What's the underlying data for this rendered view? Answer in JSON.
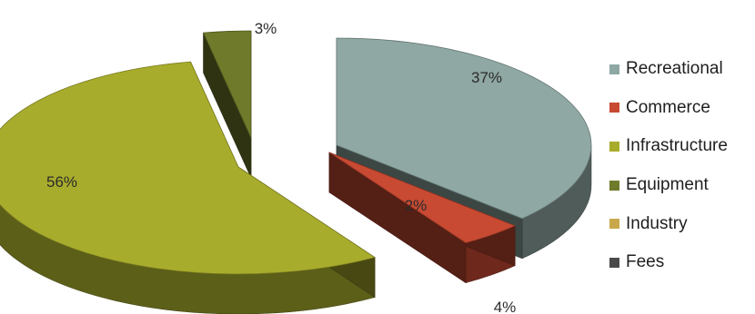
{
  "chart_data": {
    "type": "pie",
    "title": "",
    "slices": [
      {
        "name": "Recreational",
        "value": 37,
        "label": "37%",
        "color": "#8fa8a3"
      },
      {
        "name": "Commerce",
        "value": 4,
        "label": "4%",
        "color": "#c84a32"
      },
      {
        "name": "Infrastructure",
        "value": 56,
        "label": "56%",
        "color": "#a8ac2c"
      },
      {
        "name": "Equipment",
        "value": 3,
        "label": "3%",
        "color": "#6f7a2a"
      },
      {
        "name": "Industry",
        "value": 0,
        "label": "",
        "color": "#c8a84a"
      },
      {
        "name": "Fees",
        "value": 0,
        "label": "",
        "color": "#4a4a4a"
      }
    ],
    "overlap_label": "2%",
    "exploded": true,
    "three_d": true,
    "legend_position": "right"
  }
}
